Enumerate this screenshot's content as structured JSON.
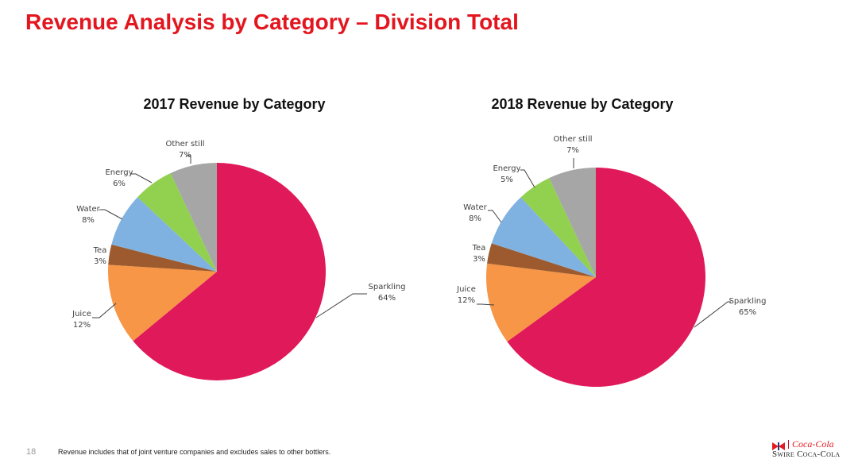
{
  "page": {
    "title": "Revenue Analysis by Category – Division Total",
    "page_number": "18",
    "footnote": "Revenue includes that of joint venture companies and excludes sales to other bottlers.",
    "logo": {
      "script": "Coca-Cola",
      "text": "Swire Coca-Cola"
    },
    "colors": {
      "title": "#e3161f"
    }
  },
  "chart_data": [
    {
      "type": "pie",
      "title": "2017 Revenue by Category",
      "start": "12 o'clock, clockwise",
      "slices": [
        {
          "label": "Sparkling",
          "value": 64,
          "display": "64%",
          "color": "#e0195a"
        },
        {
          "label": "Juice",
          "value": 12,
          "display": "12%",
          "color": "#f79646"
        },
        {
          "label": "Tea",
          "value": 3,
          "display": "3%",
          "color": "#9c5a2e"
        },
        {
          "label": "Water",
          "value": 8,
          "display": "8%",
          "color": "#7fb2e0"
        },
        {
          "label": "Energy",
          "value": 6,
          "display": "6%",
          "color": "#92d050"
        },
        {
          "label": "Other still",
          "value": 7,
          "display": "7%",
          "color": "#a6a6a6"
        }
      ]
    },
    {
      "type": "pie",
      "title": "2018 Revenue by Category",
      "start": "12 o'clock, clockwise",
      "slices": [
        {
          "label": "Sparkling",
          "value": 65,
          "display": "65%",
          "color": "#e0195a"
        },
        {
          "label": "Juice",
          "value": 12,
          "display": "12%",
          "color": "#f79646"
        },
        {
          "label": "Tea",
          "value": 3,
          "display": "3%",
          "color": "#9c5a2e"
        },
        {
          "label": "Water",
          "value": 8,
          "display": "8%",
          "color": "#7fb2e0"
        },
        {
          "label": "Energy",
          "value": 5,
          "display": "5%",
          "color": "#92d050"
        },
        {
          "label": "Other still",
          "value": 7,
          "display": "7%",
          "color": "#a6a6a6"
        }
      ]
    }
  ]
}
